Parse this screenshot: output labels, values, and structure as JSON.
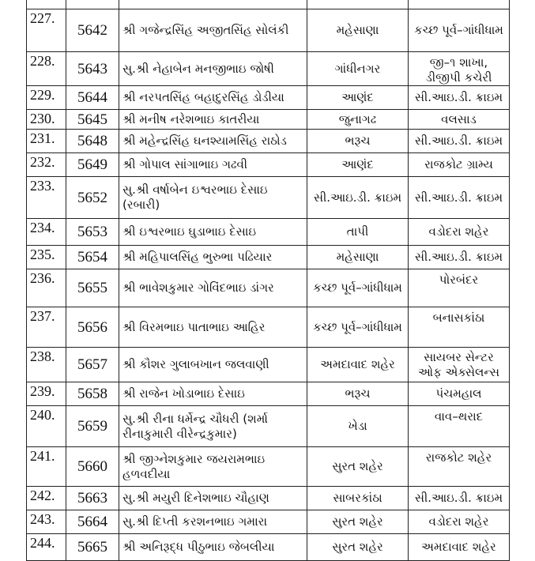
{
  "rows": [
    {
      "sr": "227.",
      "code": "5642",
      "name": "શ્રી ગજેન્દ્રસિંહ અજીતસિંહ સોલંકી",
      "from": "મહેસાણા",
      "to": "કચ્છ પૂર્વ–ગાંધીધામ"
    },
    {
      "sr": "228.",
      "code": "5643",
      "name": "સુ.શ્રી નેહાબેન મનજીભાઇ જોષી",
      "from": "ગાંધીનગર",
      "to": "જી–૧ શાખા, ડીજીપી કચેરી"
    },
    {
      "sr": "229.",
      "code": "5644",
      "name": "શ્રી નરપતસિંહ બહાદુરસિંહ ડોડીયા",
      "from": "આણંદ",
      "to": "સી.આઇ.ડી. ક્રાઇમ"
    },
    {
      "sr": "230.",
      "code": "5645",
      "name": "શ્રી મનીષ નરેશભાઇ કાતરીયા",
      "from": "જુનાગઢ",
      "to": "વલસાડ"
    },
    {
      "sr": "231.",
      "code": "5648",
      "name": "શ્રી મહેન્દ્રસિંહ ઘનશ્યામસિંહ રાઠોડ",
      "from": "ભરૂચ",
      "to": "સી.આઇ.ડી. ક્રાઇમ"
    },
    {
      "sr": "232.",
      "code": "5649",
      "name": "શ્રી ગોપાલ સાંગાભાઇ ગઢવી",
      "from": "આણંદ",
      "to": "રાજકોટ ગ્રામ્ય"
    },
    {
      "sr": "233.",
      "code": "5652",
      "name": "સુ.શ્રી વર્ષાબેન ઇશ્વરભાઇ દેસાઇ (રબારી)",
      "from": "સી.આઇ.ડી. ક્રાઇમ",
      "to": "સી.આઇ.ડી. ક્રાઇમ"
    },
    {
      "sr": "234.",
      "code": "5653",
      "name": "શ્રી ઇશ્વરભાઇ ઘુડાભાઇ દેસાઇ",
      "from": "તાપી",
      "to": "વડોદરા શહેર"
    },
    {
      "sr": "235.",
      "code": "5654",
      "name": "શ્રી મહિપાલસિંહ ભુરુભા પઢિયાર",
      "from": "મહેસાણા",
      "to": "સી.આઇ.ડી. ક્રાઇમ"
    },
    {
      "sr": "236.",
      "code": "5655",
      "name": "શ્રી ભાવેશકુમાર ગોવિંદભાઇ ડાંગર",
      "from": "કચ્છ પૂર્વ–ગાંધીધામ",
      "to": "પોરબંદર"
    },
    {
      "sr": "237.",
      "code": "5656",
      "name": "શ્રી વિરમભાઇ પાતાભાઇ આહિર",
      "from": "કચ્છ પૂર્વ–ગાંધીધામ",
      "to": "બનાસકાંઠા"
    },
    {
      "sr": "238.",
      "code": "5657",
      "name": "શ્રી કૌશર ગુલાબખાન જલવાણી",
      "from": "અમદાવાદ શહેર",
      "to": "સાયબર સેન્ટર ઓફ એક્સેલન્સ"
    },
    {
      "sr": "239.",
      "code": "5658",
      "name": "શ્રી રાજેન ખોડાભાઇ દેસાઇ",
      "from": "ભરૂચ",
      "to": "પંચમહાલ"
    },
    {
      "sr": "240.",
      "code": "5659",
      "name": "સુ.શ્રી રીના ધર્મેન્દ્ર ચૌધરી (શર્મા રીનાકુમારી વીરેન્દ્રકુમાર)",
      "from": "ખેડા",
      "to": "વાવ–થરાદ"
    },
    {
      "sr": "241.",
      "code": "5660",
      "name": "શ્રી જીગ્નેશકુમાર જયરામભાઇ હળવદીયા",
      "from": "સુરત શહેર",
      "to": "રાજકોટ શહેર"
    },
    {
      "sr": "242.",
      "code": "5663",
      "name": "સુ.શ્રી મયુરી દિનેશભાઇ ચૌહાણ",
      "from": "સાબરકાંઠા",
      "to": "સી.આઇ.ડી. ક્રાઇમ"
    },
    {
      "sr": "243.",
      "code": "5664",
      "name": "સુ.શ્રી દિપ્તી કરશનભાઇ ગમારા",
      "from": "સુરત શહેર",
      "to": "વડોદરા શહેર"
    },
    {
      "sr": "244.",
      "code": "5665",
      "name": "શ્રી અનિરૂદ્ધ પીઠુભાઇ જેબલીયા",
      "from": "સુરત શહેર",
      "to": "અમદાવાદ શહેર"
    }
  ]
}
